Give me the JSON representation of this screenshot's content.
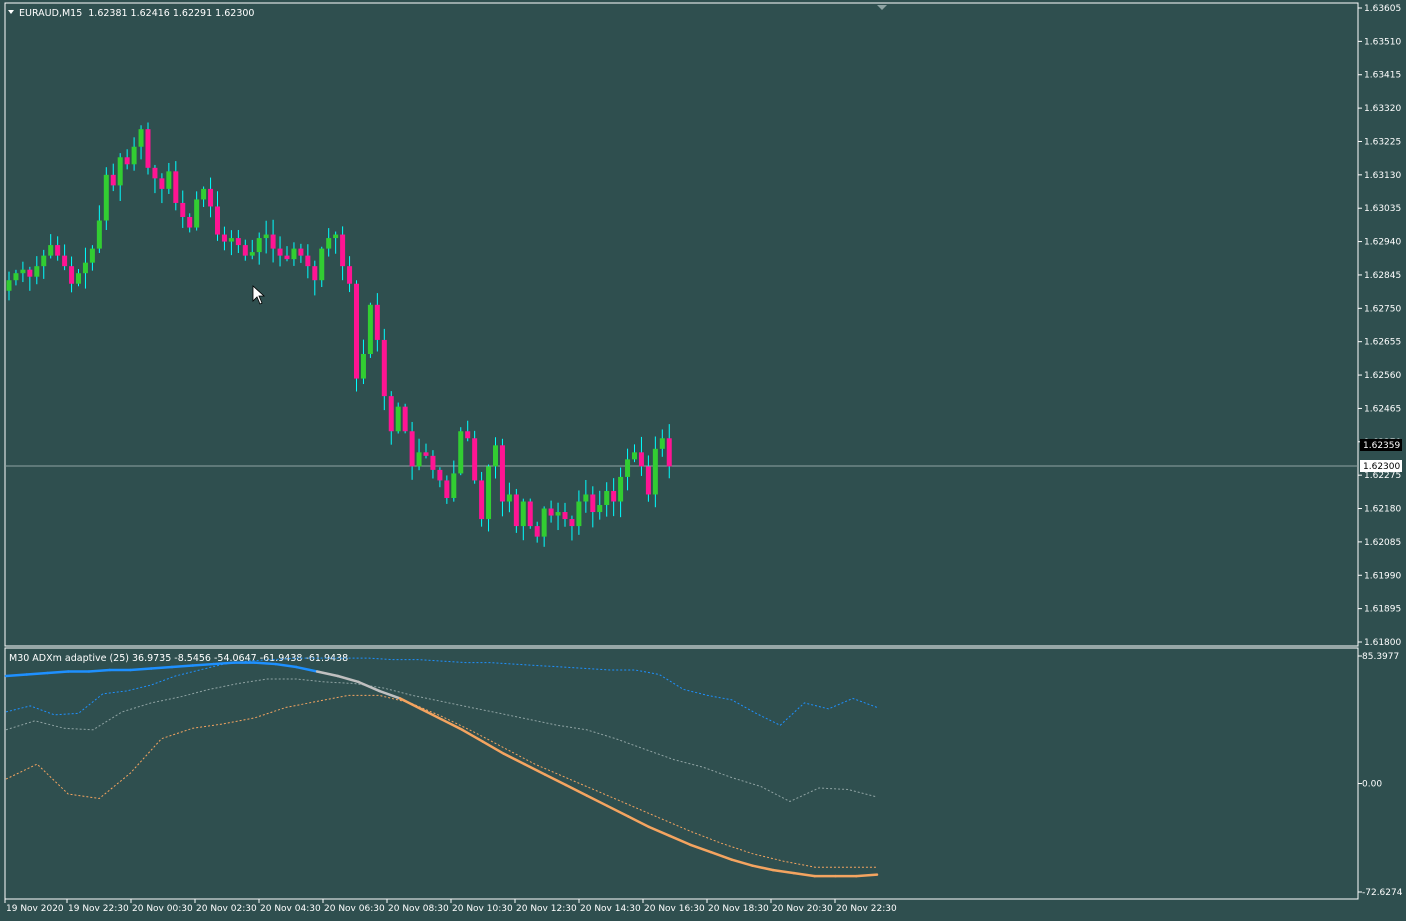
{
  "colors": {
    "background": "#2f4f4f",
    "grid_frame": "#ffffff",
    "bull_candle": "#32cd32",
    "bear_candle": "#ff1493",
    "wick": "#00ffff",
    "adx_blue": "#1e90ff",
    "adx_gray": "#c0c0c0",
    "adx_orange": "#f4a460",
    "dim_line": "#8fa3a3"
  },
  "header": {
    "symbol_timeframe": "EURAUD,M15",
    "ohlc": "1.62381 1.62416 1.62291 1.62300"
  },
  "price_axis": {
    "ticks": [
      "1.63605",
      "1.63510",
      "1.63415",
      "1.63320",
      "1.63225",
      "1.63130",
      "1.63035",
      "1.62940",
      "1.62845",
      "1.62750",
      "1.62655",
      "1.62560",
      "1.62465",
      "1.62370",
      "1.62275",
      "1.62180",
      "1.62085",
      "1.61990",
      "1.61895",
      "1.61800"
    ],
    "current_price_label": "1.62300",
    "ask_label": "1.62359"
  },
  "indicator": {
    "header": "M30 ADXm adaptive (25) 36.9735 -8.5456 -54.0647 -61.9438 -61.9438",
    "axis_ticks": [
      "85.3977",
      "0.00",
      "-72.6274"
    ]
  },
  "time_axis": {
    "labels": [
      "19 Nov 2020",
      "19 Nov 22:30",
      "20 Nov 00:30",
      "20 Nov 02:30",
      "20 Nov 04:30",
      "20 Nov 06:30",
      "20 Nov 08:30",
      "20 Nov 10:30",
      "20 Nov 12:30",
      "20 Nov 14:30",
      "20 Nov 16:30",
      "20 Nov 18:30",
      "20 Nov 20:30",
      "20 Nov 22:30"
    ]
  },
  "chart_data": {
    "type": "candlestick",
    "price_range": [
      1.618,
      1.63605
    ],
    "current_price": 1.623,
    "close_path": [
      1.6283,
      1.6285,
      1.6286,
      1.6284,
      1.6287,
      1.629,
      1.6293,
      1.629,
      1.6287,
      1.6282,
      1.6285,
      1.6288,
      1.6292,
      1.63,
      1.6313,
      1.631,
      1.6318,
      1.6316,
      1.6321,
      1.6326,
      1.6315,
      1.6312,
      1.6309,
      1.6314,
      1.6305,
      1.6301,
      1.6298,
      1.6306,
      1.6309,
      1.6304,
      1.6296,
      1.6294,
      1.6295,
      1.6293,
      1.629,
      1.6291,
      1.6295,
      1.6296,
      1.6292,
      1.629,
      1.6289,
      1.6292,
      1.629,
      1.6287,
      1.6283,
      1.6292,
      1.6295,
      1.6296,
      1.6287,
      1.6282,
      1.6255,
      1.6262,
      1.6276,
      1.6266,
      1.625,
      1.624,
      1.6247,
      1.624,
      1.623,
      1.6234,
      1.6233,
      1.6229,
      1.6226,
      1.6221,
      1.6228,
      1.624,
      1.6238,
      1.6226,
      1.6215,
      1.623,
      1.6236,
      1.622,
      1.6222,
      1.6213,
      1.622,
      1.6213,
      1.621,
      1.6218,
      1.6216,
      1.6217,
      1.6215,
      1.6213,
      1.622,
      1.6222,
      1.6217,
      1.6219,
      1.6223,
      1.622,
      1.6227,
      1.6232,
      1.6234,
      1.623,
      1.6222,
      1.6235,
      1.6238,
      1.623
    ],
    "indicator_range": [
      -72.6274,
      85.3977
    ],
    "adx_main": [
      72,
      73,
      74,
      75,
      75,
      76,
      76,
      77,
      78,
      79,
      80,
      81,
      81,
      80,
      78,
      75,
      72,
      68,
      62,
      57,
      50,
      43,
      36,
      28,
      20,
      13,
      6,
      -1,
      -8,
      -15,
      -22,
      -29,
      -35,
      -41,
      -46,
      -51,
      -55,
      -58,
      -60,
      -62,
      -62,
      -62,
      -61
    ],
    "adx_upper": [
      48,
      52,
      46,
      47,
      60,
      62,
      66,
      72,
      76,
      80,
      82,
      83,
      84,
      84,
      84,
      84,
      83,
      83,
      82,
      81,
      81,
      80,
      79,
      78,
      77,
      76,
      76,
      73,
      63,
      59,
      56,
      47,
      39,
      54,
      50,
      57,
      51
    ],
    "adx_middle": [
      36,
      42,
      37,
      36,
      48,
      54,
      58,
      63,
      67,
      70,
      70,
      68,
      67,
      64,
      59,
      55,
      51,
      47,
      43,
      39,
      36,
      30,
      23,
      16,
      11,
      4,
      -2,
      -12,
      -3,
      -4,
      -9
    ],
    "adx_lower": [
      3,
      13,
      -7,
      -10,
      7,
      30,
      37,
      40,
      44,
      51,
      55,
      59,
      59,
      54,
      45,
      35,
      24,
      13,
      4,
      -5,
      -14,
      -23,
      -32,
      -40,
      -47,
      -52,
      -56,
      -56,
      -56
    ]
  }
}
